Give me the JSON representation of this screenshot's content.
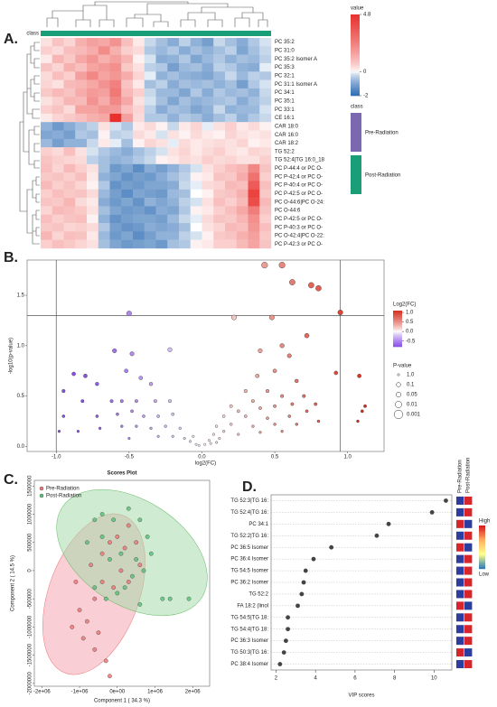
{
  "chart_data": [
    {
      "type": "heatmap",
      "panel": "A.",
      "rows": [
        "PC 35:2",
        "PC 31:0",
        "PC 35:2 Isomer A",
        "PC 35:3",
        "PC 32:1",
        "PC 31:1 Isomer A",
        "PC 34:1",
        "PC 35:1",
        "PC 33:1",
        "CE 16:1",
        "CAR 18:0",
        "CAR 16:0",
        "CAR 18:2",
        "TG 52:2",
        "TG 52:4|TG 16:0_18",
        "PC P-44:4 or PC O-",
        "PC P-42:4 or PC O-",
        "PC P-40:4 or PC O-",
        "PC P-42:5 or PC O-",
        "PC O-44:6|PC O-24:",
        "PC O-44:6",
        "PC P-42:5 or PC O-",
        "PC P-40:3 or PC O-",
        "PC O-42:4|PC O-22:",
        "PC P-42:3 or PC O-"
      ],
      "values": [
        [
          0.3,
          0.8,
          0.5,
          1.2,
          1.6,
          1.4,
          1.9,
          0.9,
          0.2,
          -0.3,
          -0.6,
          -0.9,
          -0.4,
          -0.8,
          -1.1,
          -0.3,
          -0.6,
          -0.9,
          -0.5,
          -0.2
        ],
        [
          0.6,
          0.4,
          0.9,
          1.0,
          1.3,
          2.1,
          1.2,
          0.6,
          0.4,
          -0.5,
          -0.7,
          -0.5,
          -0.9,
          -0.6,
          -0.8,
          -0.6,
          -0.4,
          -1.0,
          -0.6,
          -0.3
        ],
        [
          0.2,
          1.1,
          0.7,
          1.4,
          1.8,
          1.2,
          1.6,
          1.1,
          0.1,
          -0.2,
          -0.9,
          -0.8,
          -0.5,
          -1.0,
          -0.7,
          -0.5,
          -0.8,
          -0.6,
          -0.7,
          -0.4
        ],
        [
          0.8,
          0.5,
          1.2,
          0.9,
          1.5,
          1.7,
          2.0,
          0.7,
          0.3,
          -0.4,
          -0.5,
          -1.1,
          -0.7,
          -0.6,
          -0.9,
          -0.4,
          -0.5,
          -0.8,
          -0.9,
          -0.1
        ],
        [
          0.4,
          0.9,
          0.6,
          1.6,
          2.2,
          1.5,
          1.8,
          1.3,
          0.5,
          -0.1,
          -0.8,
          -0.6,
          -0.8,
          -0.9,
          -1.0,
          -0.7,
          -0.3,
          -0.7,
          -0.4,
          -0.5
        ],
        [
          0.5,
          0.3,
          1.0,
          1.1,
          1.4,
          1.9,
          2.4,
          0.8,
          0.2,
          -0.6,
          -0.4,
          -0.9,
          -0.6,
          -0.7,
          -0.6,
          -0.8,
          -0.6,
          -1.1,
          -0.5,
          -0.2
        ],
        [
          0.7,
          1.0,
          0.8,
          1.3,
          1.7,
          1.6,
          2.6,
          1.0,
          0.6,
          -0.3,
          -0.7,
          -0.7,
          -1.0,
          -0.5,
          -0.9,
          -0.5,
          -0.7,
          -0.6,
          -0.8,
          -0.3
        ],
        [
          0.3,
          0.6,
          1.1,
          1.0,
          1.9,
          1.3,
          2.2,
          1.4,
          0.3,
          -0.2,
          -0.6,
          -1.0,
          -0.6,
          -0.8,
          -0.7,
          -0.6,
          -0.5,
          -0.9,
          -0.6,
          -0.4
        ],
        [
          0.6,
          0.8,
          0.4,
          1.5,
          1.5,
          1.8,
          1.7,
          0.9,
          0.5,
          -0.4,
          -0.9,
          -0.6,
          -0.7,
          -1.0,
          -0.8,
          -0.3,
          -0.8,
          -0.7,
          -0.7,
          -0.2
        ],
        [
          0.2,
          0.5,
          0.7,
          0.9,
          1.2,
          1.4,
          4.8,
          1.6,
          0.4,
          -0.5,
          -0.5,
          -0.8,
          -0.5,
          -0.6,
          -0.9,
          -0.6,
          -0.4,
          -0.8,
          -0.5,
          -0.3
        ],
        [
          -0.8,
          -1.2,
          -0.9,
          -0.6,
          -0.4,
          0.3,
          -0.2,
          -0.5,
          0.2,
          0.4,
          0.1,
          -0.3,
          0.2,
          0.5,
          -0.1,
          0.3,
          0.6,
          0.2,
          0.4,
          0.1
        ],
        [
          -1.0,
          -0.9,
          -1.1,
          -0.5,
          -0.6,
          0.1,
          -0.4,
          -0.3,
          0.4,
          0.2,
          -0.2,
          0.3,
          0.1,
          0.4,
          0.2,
          0.1,
          0.5,
          0.3,
          0.2,
          0.3
        ],
        [
          -0.7,
          -1.1,
          -0.8,
          -0.8,
          -0.3,
          0.2,
          -0.1,
          -0.6,
          0.1,
          0.5,
          0.3,
          -0.1,
          0.4,
          0.2,
          0.3,
          0.4,
          0.3,
          0.5,
          0.1,
          0.2
        ],
        [
          0.6,
          0.4,
          0.9,
          0.3,
          -0.2,
          -0.5,
          -0.7,
          -0.9,
          -0.6,
          -0.4,
          -0.2,
          0.3,
          0.5,
          0.2,
          0.4,
          0.6,
          0.3,
          0.2,
          0.5,
          0.4
        ],
        [
          0.8,
          0.6,
          0.5,
          0.4,
          -0.4,
          -0.6,
          -0.8,
          -0.7,
          -0.5,
          -0.3,
          0.1,
          0.2,
          0.4,
          0.3,
          0.6,
          0.4,
          0.5,
          0.3,
          0.3,
          0.6
        ],
        [
          0.9,
          0.5,
          1.0,
          0.6,
          0.3,
          -0.6,
          -1.2,
          -1.0,
          -1.4,
          -0.9,
          -1.1,
          -0.8,
          -0.5,
          -0.2,
          0.3,
          0.6,
          0.9,
          1.1,
          2.2,
          0.8
        ],
        [
          0.7,
          0.8,
          0.6,
          0.9,
          0.2,
          -0.8,
          -1.0,
          -1.3,
          -1.1,
          -1.2,
          -0.9,
          -0.6,
          -0.4,
          0.1,
          0.2,
          0.8,
          0.7,
          1.3,
          2.8,
          0.6
        ],
        [
          1.0,
          0.6,
          0.8,
          0.5,
          0.1,
          -0.5,
          -1.3,
          -1.1,
          -1.2,
          -1.0,
          -1.0,
          -0.9,
          -0.3,
          -0.1,
          0.4,
          0.5,
          1.0,
          0.9,
          3.5,
          0.9
        ],
        [
          0.6,
          0.9,
          0.7,
          0.8,
          0.4,
          -0.7,
          -1.1,
          -1.4,
          -1.0,
          -1.1,
          -1.2,
          -0.7,
          -0.6,
          0.0,
          0.1,
          0.7,
          0.8,
          1.2,
          4.2,
          0.7
        ],
        [
          0.8,
          0.7,
          1.1,
          0.4,
          0.2,
          -0.9,
          -1.2,
          -1.0,
          -1.3,
          -0.8,
          -1.0,
          -0.8,
          -0.4,
          -0.2,
          0.3,
          0.9,
          0.6,
          1.0,
          3.9,
          1.0
        ],
        [
          0.5,
          1.0,
          0.9,
          0.7,
          0.3,
          -0.6,
          -1.0,
          -1.2,
          -1.1,
          -1.3,
          -0.9,
          -1.0,
          -0.5,
          0.1,
          0.2,
          0.6,
          0.9,
          1.4,
          2.5,
          0.8
        ],
        [
          0.9,
          0.6,
          0.8,
          0.9,
          0.1,
          -0.8,
          -1.3,
          -1.1,
          -1.0,
          -1.0,
          -1.1,
          -0.7,
          -0.3,
          -0.1,
          0.4,
          0.8,
          0.7,
          1.1,
          2.0,
          0.6
        ],
        [
          0.7,
          0.8,
          0.5,
          0.6,
          0.4,
          -0.5,
          -1.1,
          -1.3,
          -1.2,
          -0.9,
          -1.0,
          -0.9,
          -0.6,
          0.0,
          0.3,
          0.5,
          1.0,
          0.9,
          1.8,
          0.9
        ],
        [
          1.1,
          0.5,
          0.9,
          0.8,
          0.2,
          -0.7,
          -1.2,
          -1.0,
          -1.4,
          -1.1,
          -0.8,
          -0.8,
          -0.4,
          -0.2,
          0.1,
          0.7,
          0.8,
          1.2,
          1.6,
          0.7
        ],
        [
          0.6,
          0.9,
          0.7,
          0.5,
          0.3,
          -0.6,
          -1.0,
          -1.2,
          -1.1,
          -1.0,
          -1.2,
          -0.6,
          -0.5,
          0.1,
          0.2,
          0.6,
          0.6,
          1.0,
          1.5,
          0.8
        ]
      ],
      "colors": {
        "low": "#2f6db5",
        "mid": "#ffffff",
        "high": "#e8312d"
      },
      "colorbar": {
        "title": "value",
        "lim": [
          -2,
          4.8
        ],
        "ticks": [
          4.8,
          0,
          -2
        ]
      },
      "class_legend": {
        "title": "class",
        "items": [
          {
            "name": "Pre-Radiation",
            "color": "#7b68b0"
          },
          {
            "name": "Post-Radiation",
            "color": "#1a9e77"
          }
        ]
      }
    },
    {
      "type": "scatter",
      "panel": "B.",
      "xlabel": "log2(FC)",
      "ylabel": "-log10(p-value)",
      "x": [
        0.43,
        0.55,
        0.62,
        0.75,
        0.8,
        0.95,
        0.22,
        0.48,
        1.08,
        1.12,
        1.1,
        1.07,
        0.92,
        0.72,
        0.55,
        0.6,
        0.4,
        0.38,
        0.5,
        0.65,
        0.45,
        0.55,
        0.7,
        0.3,
        0.35,
        0.2,
        0.25,
        0.4,
        0.5,
        0.62,
        0.78,
        0.15,
        0.3,
        0.45,
        0.6,
        0.72,
        0.1,
        0.2,
        0.35,
        0.5,
        0.65,
        0.8,
        0.08,
        0.15,
        0.25,
        0.4,
        0.55,
        0.05,
        0.12,
        0.02,
        0.06,
        0.1,
        -0.5,
        -0.6,
        -0.48,
        -0.22,
        -0.88,
        -0.8,
        -0.72,
        -0.95,
        -0.52,
        -0.42,
        -0.35,
        -0.82,
        -0.62,
        -0.55,
        -0.45,
        -0.32,
        -0.22,
        -0.95,
        -0.72,
        -0.58,
        -0.48,
        -0.4,
        -0.3,
        -0.2,
        -0.98,
        -0.85,
        -0.7,
        -0.55,
        -0.45,
        -0.35,
        -0.25,
        -0.15,
        -0.5,
        -0.3,
        -0.2,
        -0.12,
        -0.08,
        -0.04,
        -0.02,
        -0.06
      ],
      "values": [
        1.8,
        1.8,
        1.63,
        1.6,
        1.57,
        1.33,
        1.28,
        1.28,
        0.7,
        0.4,
        0.35,
        0.25,
        0.73,
        1.1,
        1.0,
        0.9,
        0.95,
        0.7,
        0.75,
        0.65,
        0.55,
        0.5,
        0.5,
        0.55,
        0.45,
        0.4,
        0.35,
        0.38,
        0.4,
        0.42,
        0.42,
        0.3,
        0.3,
        0.28,
        0.3,
        0.35,
        0.2,
        0.22,
        0.2,
        0.22,
        0.22,
        0.25,
        0.12,
        0.15,
        0.12,
        0.14,
        0.15,
        0.06,
        0.08,
        0.02,
        0.03,
        0.04,
        1.32,
        0.95,
        0.92,
        0.96,
        0.72,
        0.7,
        0.62,
        0.55,
        0.75,
        0.68,
        0.62,
        0.45,
        0.45,
        0.45,
        0.45,
        0.45,
        0.45,
        0.3,
        0.3,
        0.32,
        0.35,
        0.3,
        0.3,
        0.32,
        0.15,
        0.15,
        0.18,
        0.2,
        0.2,
        0.18,
        0.2,
        0.18,
        0.08,
        0.1,
        0.1,
        0.08,
        0.05,
        0.02,
        0.01,
        0.1
      ],
      "xlim": [
        -1.2,
        1.25
      ],
      "ylim": [
        -0.05,
        1.85
      ],
      "xticks": [
        {
          "value": -1,
          "label": "-1.0"
        },
        -0.5,
        {
          "value": 0,
          "label": "0.0"
        },
        0.5,
        {
          "value": 1,
          "label": "1.0"
        }
      ],
      "yticks": [
        {
          "value": 0,
          "label": "0.0"
        },
        0.5,
        {
          "value": 1,
          "label": "1.0"
        },
        1.5
      ],
      "vlines": [
        -1,
        0.95
      ],
      "hline": 1.3,
      "colors": {
        "low": "#8a4fe6",
        "mid": "#ffffff",
        "high": "#d62f1f"
      },
      "colorbar": {
        "title": "Log2(FC)",
        "lim": [
          -0.8,
          1.1
        ],
        "ticks": [
          {
            "value": 1,
            "label": "1.0"
          },
          0.5,
          {
            "value": 0,
            "label": "0.0"
          },
          -0.5
        ]
      },
      "size_legend": {
        "title": "P-value",
        "ticks": [
          {
            "value": 1,
            "label": "1.0"
          },
          0.1,
          0.05,
          0.01,
          0.001
        ]
      }
    },
    {
      "type": "scatter",
      "panel": "C.",
      "title": "Scores Plot",
      "xlabel": "Component 1 ( 34.3 %)",
      "ylabel": "Component 2 ( 14.5 %)",
      "xlim": [
        -2200000,
        2450000
      ],
      "ylim": [
        -2050000,
        1600000
      ],
      "xticks": [
        {
          "value": -2000000,
          "label": "-2e+06"
        },
        {
          "value": -1000000,
          "label": "-1e+06"
        },
        {
          "value": 0,
          "label": "0e+00"
        },
        {
          "value": 1000000,
          "label": "1e+06"
        },
        {
          "value": 2000000,
          "label": "2e+06"
        }
      ],
      "yticks": [
        1500000,
        1000000,
        500000,
        0,
        -500000,
        -1000000,
        -1500000,
        -2000000
      ],
      "series": [
        {
          "name": "Pre-Radiation",
          "color": "#f07878",
          "x": [
            -1100000,
            -1000000,
            -900000,
            -800000,
            -600000,
            -600000,
            -500000,
            -300000,
            -400000,
            -200000,
            0,
            200000,
            300000,
            500000,
            300000,
            -100000,
            -700000,
            100000,
            600000,
            -400000,
            -200000,
            -1200000
          ],
          "values": [
            -200000,
            -700000,
            -1200000,
            -900000,
            -500000,
            -1400000,
            -1100000,
            -1600000,
            300000,
            500000,
            600000,
            400000,
            800000,
            500000,
            -200000,
            -300000,
            100000,
            0,
            100000,
            -200000,
            -1870000,
            -1000000
          ]
        },
        {
          "name": "Post-Radiation",
          "color": "#5cc47a",
          "x": [
            -600000,
            -400000,
            -100000,
            300000,
            600000,
            800000,
            500000,
            700000,
            400000,
            200000,
            -200000,
            -400000,
            -800000,
            1200000,
            1400000,
            1900000,
            600000,
            0,
            -300000,
            100000,
            900000,
            -600000
          ],
          "values": [
            900000,
            1000000,
            900000,
            1100000,
            900000,
            600000,
            200000,
            0,
            -100000,
            -300000,
            200000,
            600000,
            500000,
            -500000,
            -500000,
            -500000,
            -600000,
            -400000,
            -500000,
            300000,
            300000,
            -300000
          ]
        }
      ]
    },
    {
      "type": "dot",
      "panel": "D.",
      "xlabel": "VIP scores",
      "categories": [
        "TG 52:3|TG 16:",
        "TG 52:4|TG 16:",
        "PC 34:1",
        "TG 52:2|TG 16:",
        "PC 36:5 Isomer",
        "PC 36:4 Isomer",
        "TG 54:5 Isomer",
        "PC 36:2 Isomer",
        "TG 52:2",
        "FA 18:2 (linol",
        "TG 54:5|TG 18:",
        "TG 54:4|TG 18:",
        "PC 36:3 Isomer",
        "TG 50:3|TG 16:",
        "PC 38:4 Isomer"
      ],
      "values": [
        10.6,
        9.9,
        7.7,
        7.1,
        4.8,
        3.9,
        3.5,
        3.4,
        3.3,
        3.1,
        2.6,
        2.6,
        2.5,
        2.4,
        2.2
      ],
      "xlim": [
        1.75,
        10.9
      ],
      "xticks": [
        2,
        4,
        6,
        8,
        10
      ],
      "color": "#444444",
      "heat_columns": [
        "Pre-Radiation",
        "Post-Radiation"
      ],
      "heat_colors": [
        [
          "#2b3d9e",
          "#d7262b"
        ],
        [
          "#2b3d9e",
          "#d7262b"
        ],
        [
          "#d7262b",
          "#2b3d9e"
        ],
        [
          "#2b3d9e",
          "#d7262b"
        ],
        [
          "#d7262b",
          "#2b3d9e"
        ],
        [
          "#2b3d9e",
          "#d7262b"
        ],
        [
          "#2b3d9e",
          "#d7262b"
        ],
        [
          "#2b3d9e",
          "#d7262b"
        ],
        [
          "#2b3d9e",
          "#d7262b"
        ],
        [
          "#d7262b",
          "#2b3d9e"
        ],
        [
          "#2b3d9e",
          "#d7262b"
        ],
        [
          "#2b3d9e",
          "#d7262b"
        ],
        [
          "#2b3d9e",
          "#d7262b"
        ],
        [
          "#d7262b",
          "#2b3d9e"
        ],
        [
          "#2b3d9e",
          "#d7262b"
        ]
      ],
      "heat_legend": {
        "high": "High",
        "low": "Low",
        "colors": [
          "#d7191c",
          "#fdae61",
          "#ffff8c",
          "#2c7bb6"
        ]
      }
    }
  ]
}
